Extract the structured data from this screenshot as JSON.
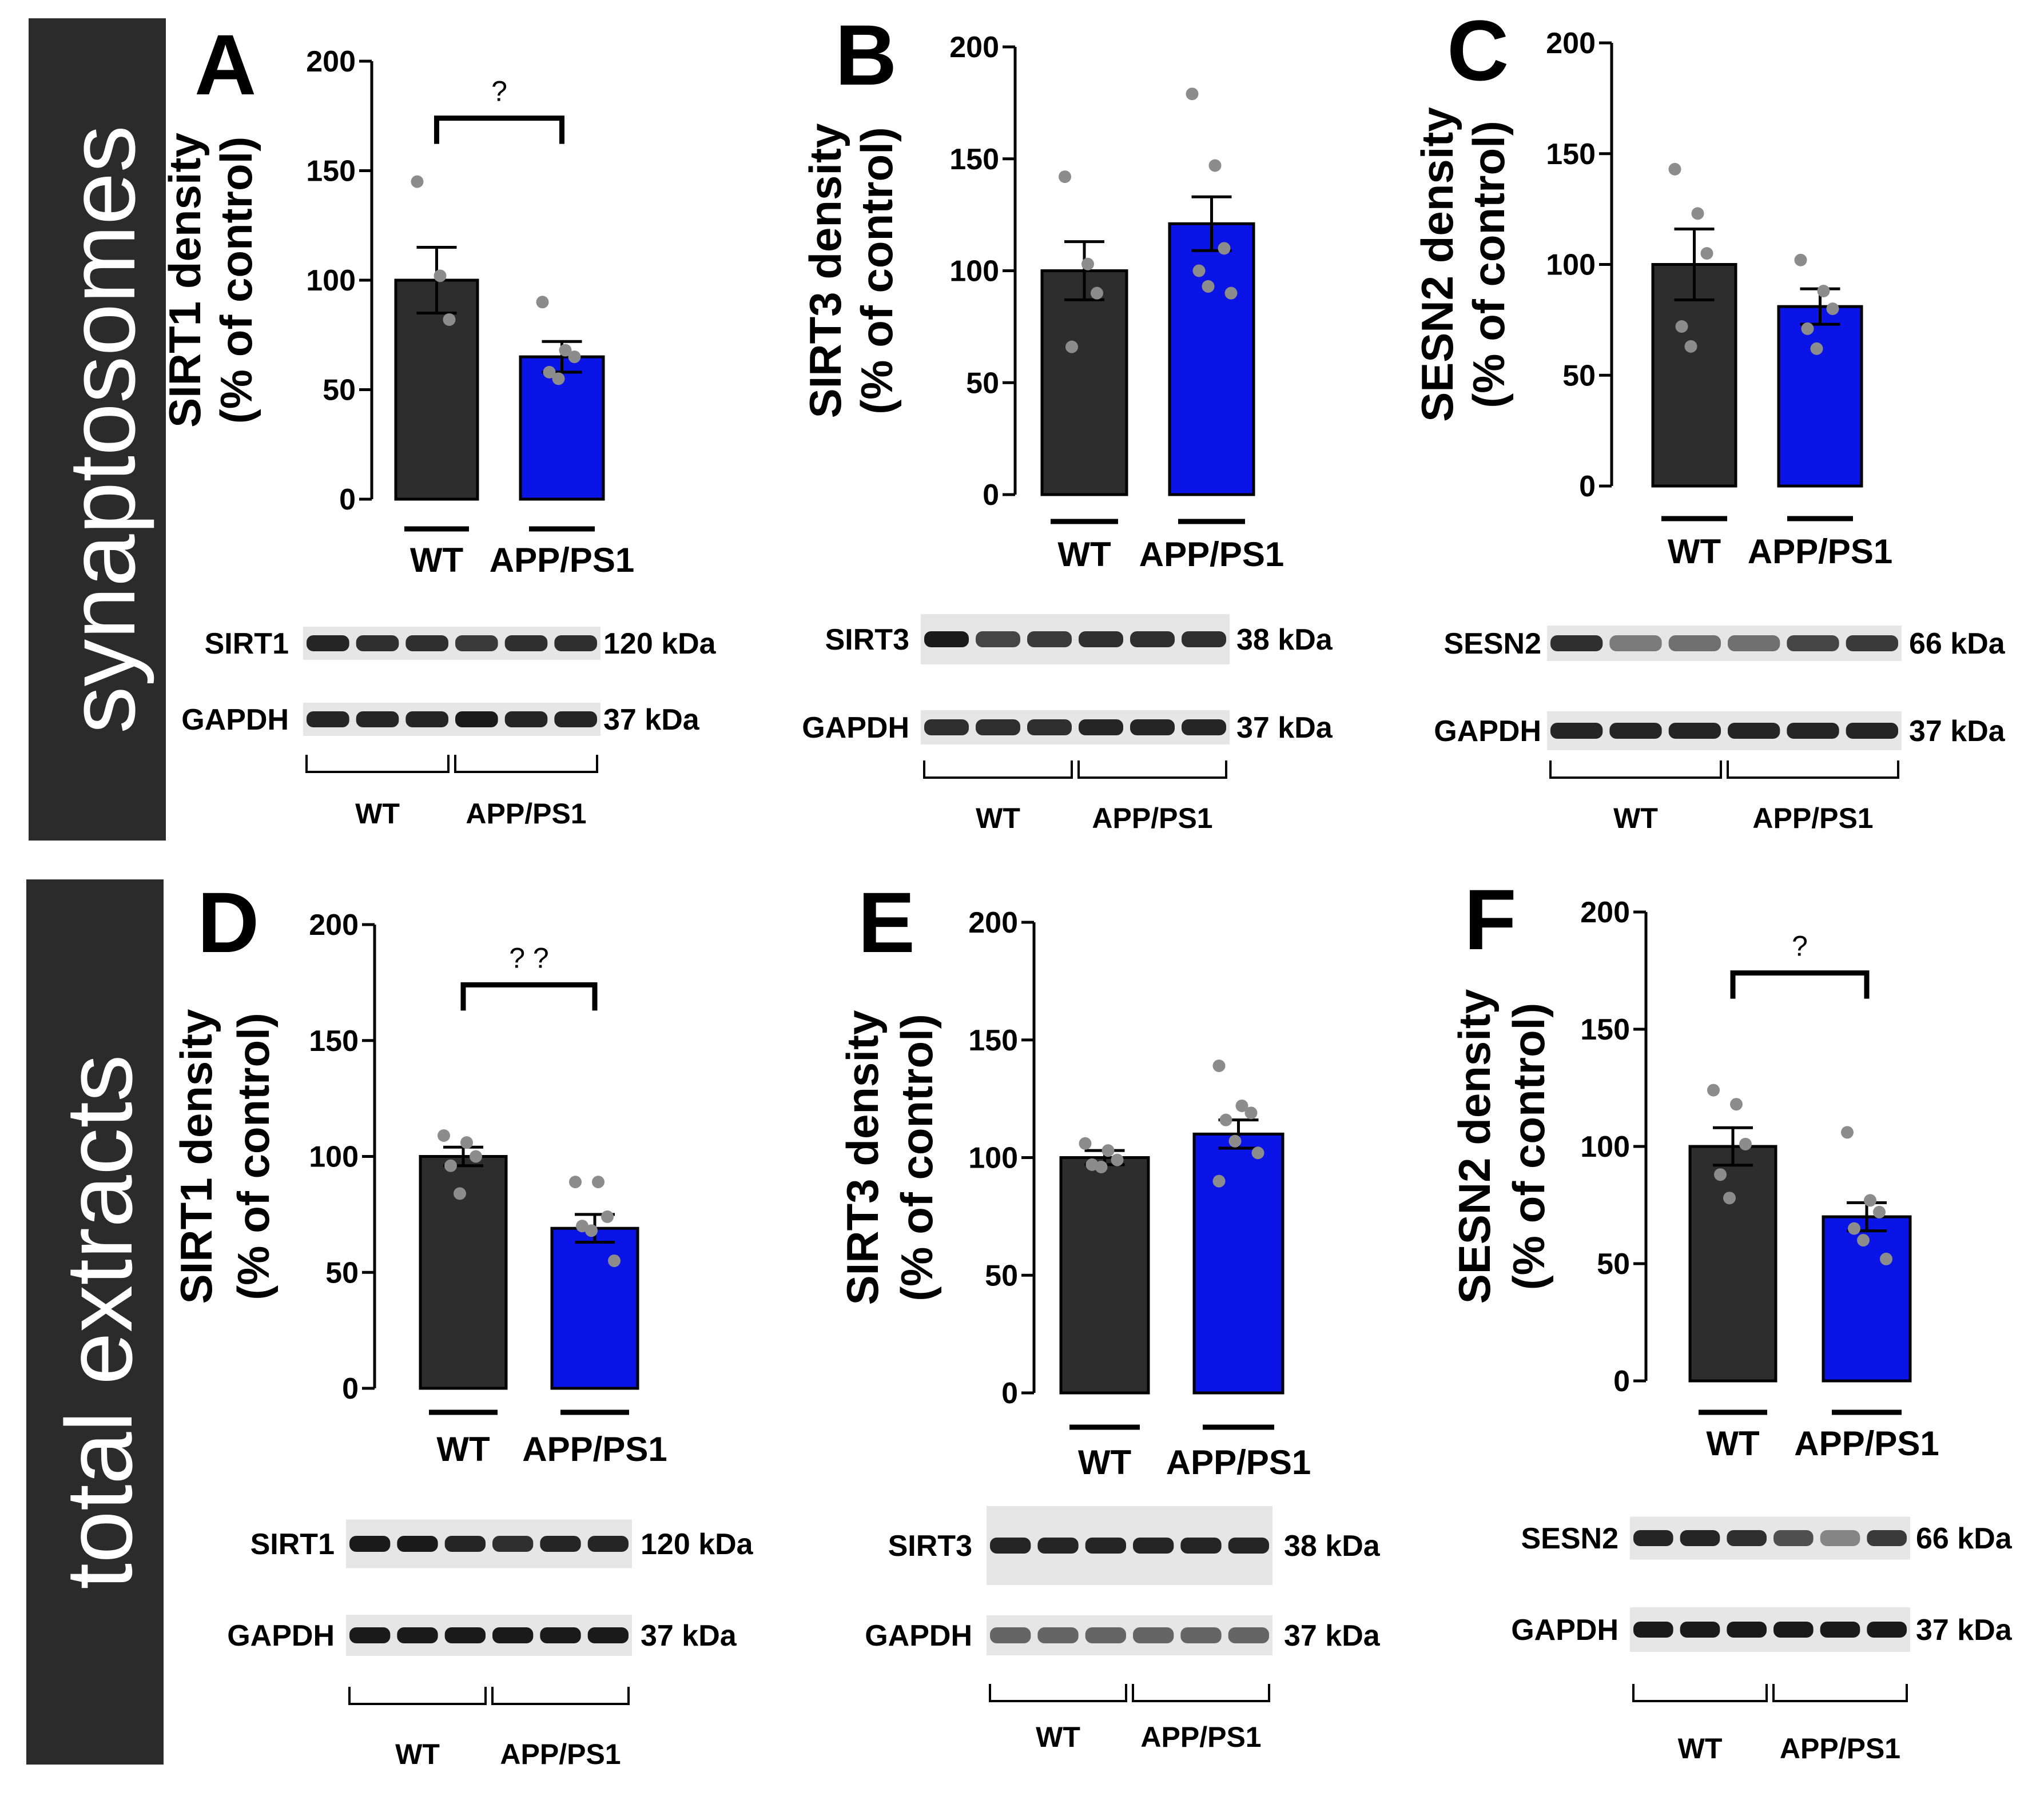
{
  "figure": {
    "row_labels": [
      "synaptosomes",
      "total extracts"
    ],
    "colors": {
      "wt_bar": "#2d2d2d",
      "app_bar": "#0a14e6",
      "dot": "#8c8c8c",
      "band": "#141414",
      "side_box": "#2b2b2b"
    }
  },
  "chart_data": [
    {
      "type": "bar",
      "panel": "A",
      "row": "synaptosomes",
      "ylabel_line1": "SIRT1 density",
      "ylabel_line2": "(% of control)",
      "ylim": [
        0,
        200
      ],
      "yticks": [
        0,
        50,
        100,
        150,
        200
      ],
      "categories": [
        "WT",
        "APP/PS1"
      ],
      "values": [
        100,
        65
      ],
      "sem": [
        15,
        7
      ],
      "points": [
        [
          145,
          102,
          82
        ],
        [
          90,
          68,
          65,
          58,
          55
        ]
      ],
      "significance": "?",
      "blot": {
        "target": "SIRT1",
        "target_kda": "120 kDa",
        "control": "GAPDH",
        "control_kda": "37 kDa",
        "groups": [
          "WT",
          "APP/PS1"
        ],
        "target_intensity": [
          0.9,
          0.85,
          0.85,
          0.8,
          0.85,
          0.85
        ],
        "control_intensity": [
          0.9,
          0.9,
          0.9,
          0.95,
          0.9,
          0.9
        ]
      }
    },
    {
      "type": "bar",
      "panel": "B",
      "row": "synaptosomes",
      "ylabel_line1": "SIRT3 density",
      "ylabel_line2": "(% of control)",
      "ylim": [
        0,
        200
      ],
      "yticks": [
        0,
        50,
        100,
        150,
        200
      ],
      "categories": [
        "WT",
        "APP/PS1"
      ],
      "values": [
        100,
        121
      ],
      "sem": [
        13,
        12
      ],
      "points": [
        [
          142,
          103,
          90,
          66
        ],
        [
          179,
          147,
          110,
          100,
          93,
          90
        ]
      ],
      "significance": "",
      "blot": {
        "target": "SIRT3",
        "target_kda": "38 kDa",
        "control": "GAPDH",
        "control_kda": "37 kDa",
        "groups": [
          "WT",
          "APP/PS1"
        ],
        "target_intensity": [
          0.95,
          0.75,
          0.8,
          0.85,
          0.85,
          0.85
        ],
        "control_intensity": [
          0.85,
          0.85,
          0.85,
          0.9,
          0.9,
          0.9
        ]
      }
    },
    {
      "type": "bar",
      "panel": "C",
      "row": "synaptosomes",
      "ylabel_line1": "SESN2 density",
      "ylabel_line2": "(% of control)",
      "ylim": [
        0,
        200
      ],
      "yticks": [
        0,
        50,
        100,
        150,
        200
      ],
      "categories": [
        "WT",
        "APP/PS1"
      ],
      "values": [
        100,
        81
      ],
      "sem": [
        16,
        8
      ],
      "points": [
        [
          143,
          123,
          105,
          72,
          63
        ],
        [
          102,
          88,
          80,
          71,
          62
        ]
      ],
      "significance": "",
      "blot": {
        "target": "SESN2",
        "target_kda": "66 kDa",
        "control": "GAPDH",
        "control_kda": "37 kDa",
        "groups": [
          "WT",
          "APP/PS1"
        ],
        "target_intensity": [
          0.85,
          0.5,
          0.55,
          0.55,
          0.75,
          0.8
        ],
        "control_intensity": [
          0.9,
          0.9,
          0.9,
          0.9,
          0.9,
          0.9
        ]
      }
    },
    {
      "type": "bar",
      "panel": "D",
      "row": "total extracts",
      "ylabel_line1": "SIRT1 density",
      "ylabel_line2": "(% of control)",
      "ylim": [
        0,
        200
      ],
      "yticks": [
        0,
        50,
        100,
        150,
        200
      ],
      "categories": [
        "WT",
        "APP/PS1"
      ],
      "values": [
        100,
        69
      ],
      "sem": [
        4,
        6
      ],
      "points": [
        [
          109,
          106,
          100,
          96,
          84
        ],
        [
          89,
          89,
          74,
          70,
          68,
          55
        ]
      ],
      "significance": "? ?",
      "blot": {
        "target": "SIRT1",
        "target_kda": "120 kDa",
        "control": "GAPDH",
        "control_kda": "37 kDa",
        "groups": [
          "WT",
          "APP/PS1"
        ],
        "target_intensity": [
          0.95,
          0.95,
          0.9,
          0.85,
          0.9,
          0.9
        ],
        "control_intensity": [
          0.95,
          0.95,
          0.95,
          0.95,
          0.95,
          0.95
        ]
      }
    },
    {
      "type": "bar",
      "panel": "E",
      "row": "total extracts",
      "ylabel_line1": "SIRT3 density",
      "ylabel_line2": "(% of control)",
      "ylim": [
        0,
        200
      ],
      "yticks": [
        0,
        50,
        100,
        150,
        200
      ],
      "categories": [
        "WT",
        "APP/PS1"
      ],
      "values": [
        100,
        110
      ],
      "sem": [
        3,
        6
      ],
      "points": [
        [
          106,
          103,
          99,
          97,
          96
        ],
        [
          139,
          122,
          119,
          116,
          107,
          102,
          90
        ]
      ],
      "significance": "",
      "blot": {
        "target": "SIRT3",
        "target_kda": "38 kDa",
        "control": "GAPDH",
        "control_kda": "37 kDa",
        "groups": [
          "WT",
          "APP/PS1"
        ],
        "target_intensity": [
          0.9,
          0.9,
          0.9,
          0.9,
          0.9,
          0.9
        ],
        "control_intensity": [
          0.6,
          0.6,
          0.6,
          0.6,
          0.6,
          0.6
        ]
      }
    },
    {
      "type": "bar",
      "panel": "F",
      "row": "total extracts",
      "ylabel_line1": "SESN2 density",
      "ylabel_line2": "(% of control)",
      "ylim": [
        0,
        200
      ],
      "yticks": [
        0,
        50,
        100,
        150,
        200
      ],
      "categories": [
        "WT",
        "APP/PS1"
      ],
      "values": [
        100,
        70
      ],
      "sem": [
        8,
        6
      ],
      "points": [
        [
          124,
          118,
          101,
          88,
          78
        ],
        [
          106,
          77,
          72,
          65,
          60,
          52
        ]
      ],
      "significance": "?",
      "blot": {
        "target": "SESN2",
        "target_kda": "66 kDa",
        "control": "GAPDH",
        "control_kda": "37 kDa",
        "groups": [
          "WT",
          "APP/PS1"
        ],
        "target_intensity": [
          0.9,
          0.9,
          0.85,
          0.7,
          0.45,
          0.8
        ],
        "control_intensity": [
          0.95,
          0.95,
          0.95,
          0.95,
          0.95,
          0.95
        ]
      }
    }
  ]
}
